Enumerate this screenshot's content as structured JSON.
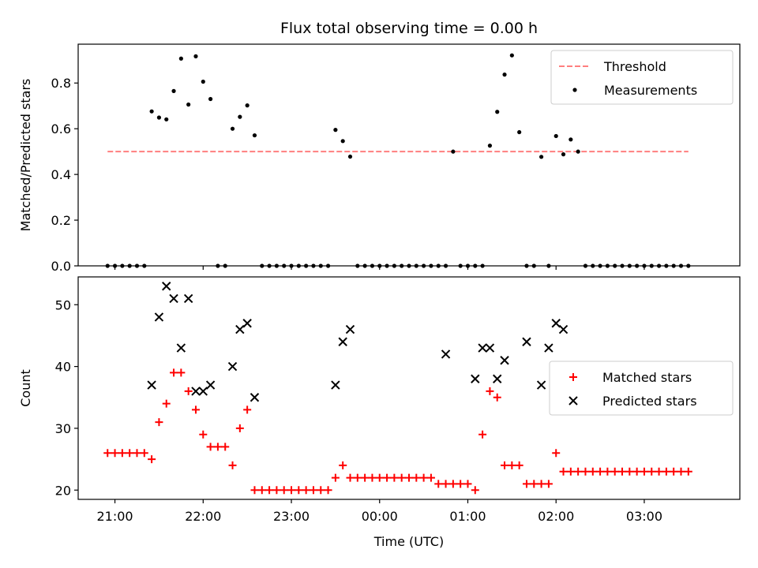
{
  "figure": {
    "title": "Flux total observing time = 0.00 h"
  },
  "colors": {
    "threshold": "#ff7f7f",
    "measurement": "#000000",
    "matched": "#ff0000",
    "predicted": "#000000"
  },
  "chart_data": [
    {
      "type": "scatter",
      "panel": "top",
      "ylabel": "Matched/Predicted stars",
      "xlabel": "",
      "x_unit": "time UTC",
      "xlim": [
        "20:35",
        "04:05"
      ],
      "ylim": [
        0,
        0.97
      ],
      "yticks": [
        "0.0",
        "0.2",
        "0.4",
        "0.6",
        "0.8"
      ],
      "grid": false,
      "legend": {
        "placement": "upper-right",
        "entries": [
          "Threshold",
          "Measurements"
        ]
      },
      "series": [
        {
          "name": "Threshold",
          "type": "line",
          "style": "dashed",
          "x": [
            "20:55",
            "03:30"
          ],
          "values": [
            0.5,
            0.5
          ]
        },
        {
          "name": "Measurements",
          "type": "scatter",
          "x": [
            "20:55",
            "21:00",
            "21:05",
            "21:10",
            "21:15",
            "21:20",
            "21:25",
            "21:30",
            "21:35",
            "21:40",
            "21:45",
            "21:50",
            "21:55",
            "22:00",
            "22:05",
            "22:10",
            "22:15",
            "22:20",
            "22:25",
            "22:30",
            "22:35",
            "22:40",
            "22:45",
            "22:50",
            "22:55",
            "23:00",
            "23:05",
            "23:10",
            "23:15",
            "23:20",
            "23:25",
            "23:30",
            "23:35",
            "23:40",
            "23:45",
            "23:50",
            "23:55",
            "00:00",
            "00:05",
            "00:10",
            "00:15",
            "00:20",
            "00:25",
            "00:30",
            "00:35",
            "00:40",
            "00:45",
            "00:50",
            "00:55",
            "01:00",
            "01:05",
            "01:10",
            "01:15",
            "01:20",
            "01:25",
            "01:30",
            "01:35",
            "01:40",
            "01:45",
            "01:50",
            "01:55",
            "02:00",
            "02:05",
            "02:10",
            "02:15",
            "02:20",
            "02:25",
            "02:30",
            "02:35",
            "02:40",
            "02:45",
            "02:50",
            "02:55",
            "03:00",
            "03:05",
            "03:10",
            "03:15",
            "03:20",
            "03:25",
            "03:30"
          ],
          "values": [
            0,
            0,
            0,
            0,
            0,
            0,
            0.676,
            0.649,
            0.641,
            0.765,
            0.907,
            0.706,
            0.917,
            0.806,
            0.73,
            0,
            0,
            0.6,
            0.652,
            0.702,
            0.571,
            0,
            0,
            0,
            0,
            0,
            0,
            0,
            0,
            0,
            0,
            0.595,
            0.546,
            0.478,
            0,
            0,
            0,
            0,
            0,
            0,
            0,
            0,
            0,
            0,
            0,
            0,
            0,
            0.5,
            0,
            0,
            0,
            0,
            0.526,
            0.674,
            0.837,
            0.921,
            0.585,
            0,
            0,
            0.477,
            0,
            0.568,
            0.488,
            0.553,
            0.5,
            0,
            0,
            0,
            0,
            0,
            0,
            0,
            0,
            0,
            0,
            0,
            0,
            0,
            0,
            0
          ]
        }
      ]
    },
    {
      "type": "scatter",
      "panel": "bottom",
      "ylabel": "Count",
      "xlabel": "Time (UTC)",
      "x_unit": "time UTC",
      "xlim": [
        "20:35",
        "04:05"
      ],
      "ylim": [
        18.5,
        54.5
      ],
      "xticks": [
        "21:00",
        "22:00",
        "23:00",
        "00:00",
        "01:00",
        "02:00",
        "03:00"
      ],
      "yticks": [
        "20",
        "30",
        "40",
        "50"
      ],
      "grid": false,
      "legend": {
        "placement": "center-right",
        "entries": [
          "Matched stars",
          "Predicted stars"
        ]
      },
      "series": [
        {
          "name": "Matched stars",
          "marker": "plus",
          "x": [
            "20:55",
            "21:00",
            "21:05",
            "21:10",
            "21:15",
            "21:20",
            "21:25",
            "21:30",
            "21:35",
            "21:40",
            "21:45",
            "21:50",
            "21:55",
            "22:00",
            "22:05",
            "22:10",
            "22:15",
            "22:20",
            "22:25",
            "22:30",
            "22:35",
            "22:40",
            "22:45",
            "22:50",
            "22:55",
            "23:00",
            "23:05",
            "23:10",
            "23:15",
            "23:20",
            "23:25",
            "23:30",
            "23:35",
            "23:40",
            "23:45",
            "23:50",
            "23:55",
            "00:00",
            "00:05",
            "00:10",
            "00:15",
            "00:20",
            "00:25",
            "00:30",
            "00:35",
            "00:40",
            "00:45",
            "00:50",
            "00:55",
            "01:00",
            "01:05",
            "01:10",
            "01:15",
            "01:20",
            "01:25",
            "01:30",
            "01:35",
            "01:40",
            "01:45",
            "01:50",
            "01:55",
            "02:00",
            "02:05",
            "02:10",
            "02:15",
            "02:20",
            "02:25",
            "02:30",
            "02:35",
            "02:40",
            "02:45",
            "02:50",
            "02:55",
            "03:00",
            "03:05",
            "03:10",
            "03:15",
            "03:20",
            "03:25",
            "03:30"
          ],
          "values": [
            26,
            26,
            26,
            26,
            26,
            26,
            25,
            31,
            34,
            39,
            39,
            36,
            33,
            29,
            27,
            27,
            27,
            24,
            30,
            33,
            20,
            20,
            20,
            20,
            20,
            20,
            20,
            20,
            20,
            20,
            20,
            22,
            24,
            22,
            22,
            22,
            22,
            22,
            22,
            22,
            22,
            22,
            22,
            22,
            22,
            21,
            21,
            21,
            21,
            21,
            20,
            29,
            36,
            35,
            24,
            24,
            24,
            21,
            21,
            21,
            21,
            26,
            23,
            23,
            23,
            23,
            23,
            23,
            23,
            23,
            23,
            23,
            23,
            23,
            23,
            23,
            23,
            23,
            23,
            23
          ]
        },
        {
          "name": "Predicted stars",
          "marker": "x",
          "x": [
            "21:25",
            "21:30",
            "21:35",
            "21:40",
            "21:45",
            "21:50",
            "21:55",
            "22:00",
            "22:05",
            "22:20",
            "22:25",
            "22:30",
            "22:35",
            "23:30",
            "23:35",
            "23:40",
            "00:45",
            "01:05",
            "01:10",
            "01:15",
            "01:20",
            "01:25",
            "01:40",
            "01:50",
            "01:55",
            "02:00",
            "02:05"
          ],
          "values": [
            37,
            48,
            53,
            51,
            43,
            51,
            36,
            36,
            37,
            40,
            46,
            47,
            35,
            37,
            44,
            46,
            42,
            38,
            43,
            43,
            38,
            41,
            44,
            37,
            43,
            47,
            46
          ]
        }
      ]
    }
  ]
}
